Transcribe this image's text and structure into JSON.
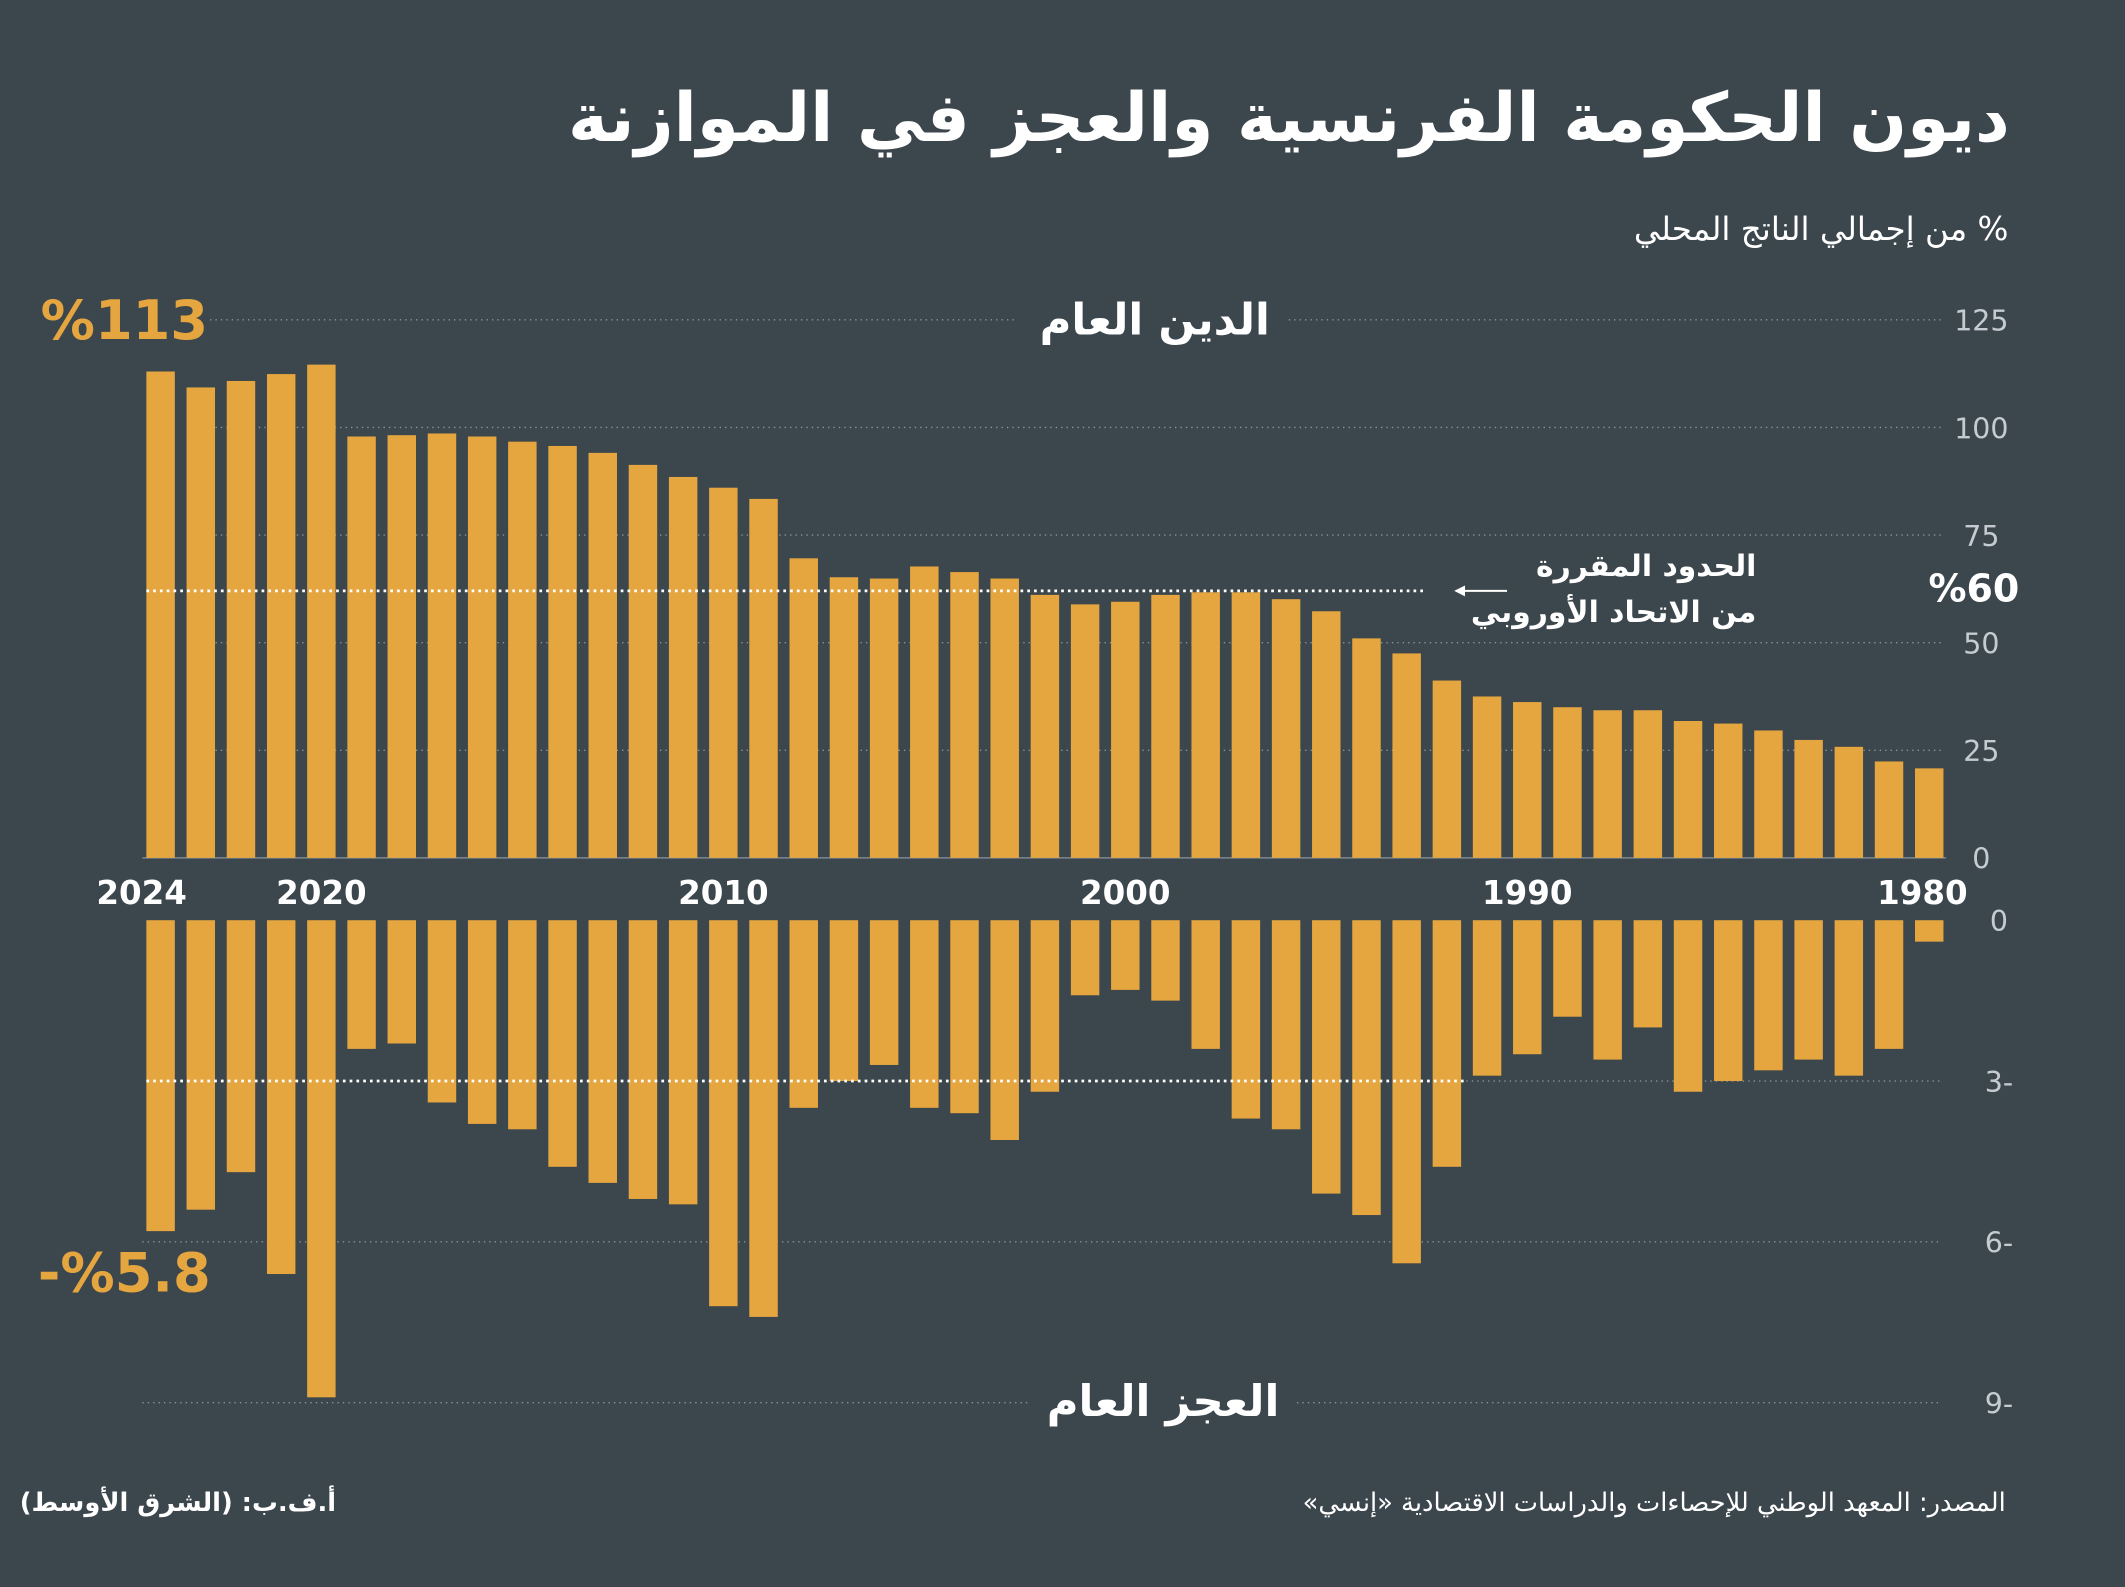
{
  "title": "ديون الحكومة الفرنسية والعجز في الموازنة",
  "subtitle": "% من إجمالي الناتج المحلي",
  "colors": {
    "background": "#3c464d",
    "bar": "#e5a640",
    "grid": "#8a949a",
    "text": "#ffffff",
    "tick": "#c5ccd1"
  },
  "chart_data": [
    {
      "type": "bar",
      "title": "الدين العام",
      "unit": "% من إجمالي الناتج المحلي",
      "categories": [
        2024,
        2023,
        2022,
        2021,
        2020,
        2019,
        2018,
        2017,
        2016,
        2015,
        2014,
        2013,
        2012,
        2011,
        2010,
        2009,
        2008,
        2007,
        2006,
        2005,
        2004,
        2003,
        2002,
        2001,
        2000,
        1999,
        1998,
        1997,
        1996,
        1995,
        1994,
        1993,
        1992,
        1991,
        1990,
        1989,
        1988,
        1987,
        1986,
        1985,
        1984,
        1983,
        1982,
        1981,
        1980
      ],
      "values": [
        113,
        109.3,
        110.8,
        112.4,
        114.6,
        97.9,
        98.2,
        98.6,
        97.9,
        96.7,
        95.7,
        94.1,
        91.3,
        88.5,
        86,
        83.4,
        69.6,
        65.2,
        64.9,
        67.7,
        66.4,
        64.9,
        61.1,
        58.9,
        59.5,
        61.1,
        61.7,
        61.7,
        60.1,
        57.3,
        51,
        47.5,
        41.2,
        37.5,
        36.2,
        35,
        34.3,
        34.3,
        31.8,
        31.2,
        29.6,
        27.4,
        25.8,
        22.4,
        20.8
      ],
      "ylim": [
        0,
        125
      ],
      "yticks": [
        "0",
        "25",
        "50",
        "75",
        "100",
        "125"
      ],
      "xticks": [
        "2024",
        "2020",
        "2010",
        "2000",
        "1990",
        "1980"
      ],
      "highlight_label": "%113",
      "reference_line": {
        "value": 60,
        "label": "%60",
        "note_line1": "الحدود المقررة",
        "note_line2": "من الاتحاد الأوروبي"
      }
    },
    {
      "type": "bar",
      "title": "العجز العام",
      "categories": [
        2024,
        2023,
        2022,
        2021,
        2020,
        2019,
        2018,
        2017,
        2016,
        2015,
        2014,
        2013,
        2012,
        2011,
        2010,
        2009,
        2008,
        2007,
        2006,
        2005,
        2004,
        2003,
        2002,
        2001,
        2000,
        1999,
        1998,
        1997,
        1996,
        1995,
        1994,
        1993,
        1992,
        1991,
        1990,
        1989,
        1988,
        1987,
        1986,
        1985,
        1984,
        1983,
        1982,
        1981,
        1980
      ],
      "values": [
        -5.8,
        -5.4,
        -4.7,
        -6.6,
        -8.9,
        -2.4,
        -2.3,
        -3.4,
        -3.8,
        -3.9,
        -4.6,
        -4.9,
        -5.2,
        -5.3,
        -7.2,
        -7.4,
        -3.5,
        -3.0,
        -2.7,
        -3.5,
        -3.6,
        -4.1,
        -3.2,
        -1.4,
        -1.3,
        -1.5,
        -2.4,
        -3.7,
        -3.9,
        -5.1,
        -5.5,
        -6.4,
        -4.6,
        -2.9,
        -2.5,
        -1.8,
        -2.6,
        -2.0,
        -3.2,
        -3.0,
        -2.8,
        -2.6,
        -2.9,
        -2.4,
        -0.4
      ],
      "ylim": [
        -9,
        0
      ],
      "yticks": [
        "0",
        "-3",
        "-6",
        "-9"
      ],
      "highlight_label": "-%5.8",
      "reference_line": {
        "value": -3
      }
    }
  ],
  "footer": {
    "source": "المصدر: المعهد الوطني للإحصاءات والدراسات الاقتصادية «إنسي»",
    "credit": "أ.ف.ب: (الشرق الأوسط)"
  }
}
